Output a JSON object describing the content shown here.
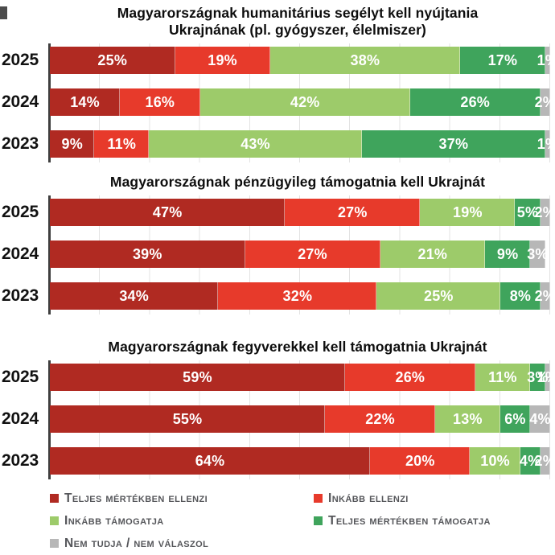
{
  "page": {
    "background": "#FFFFFF"
  },
  "colors": {
    "strongly_oppose": "#B02A22",
    "somewhat_oppose": "#E73A2B",
    "somewhat_support": "#9DCB6A",
    "strongly_support": "#3FA45C",
    "dont_know": "#B7B7B7",
    "axis": "#3E3E3E",
    "gridline": "#E3E3E3",
    "bar_label": "#FFFFFF",
    "title_text": "#0E0E0E",
    "year_text": "#111111",
    "legend_text": "#55565A"
  },
  "legend": {
    "items": [
      {
        "label": "Teljes mértékben ellenzi",
        "color": "#B02A22"
      },
      {
        "label": "Inkább ellenzi",
        "color": "#E73A2B"
      },
      {
        "label": "Inkább támogatja",
        "color": "#9DCB6A"
      },
      {
        "label": "Teljes mértékben támogatja",
        "color": "#3FA45C"
      },
      {
        "label": "Nem tudja / nem válaszol",
        "color": "#B7B7B7"
      }
    ]
  },
  "chart_data": [
    {
      "type": "bar",
      "orientation": "horizontal",
      "stacked": true,
      "grid": true,
      "unit": "%",
      "xlim": [
        0,
        100
      ],
      "title": "Magyarországnak humanitárius segélyt kell nyújtania\nUkrajnának (pl. gyógyszer, élelmiszer)",
      "categories": [
        "2025",
        "2024",
        "2023"
      ],
      "series": [
        {
          "name": "Teljes mértékben ellenzi",
          "values": [
            25,
            14,
            9
          ]
        },
        {
          "name": "Inkább ellenzi",
          "values": [
            19,
            16,
            11
          ]
        },
        {
          "name": "Inkább támogatja",
          "values": [
            38,
            42,
            43
          ]
        },
        {
          "name": "Teljes mértékben támogatja",
          "values": [
            17,
            26,
            37
          ]
        },
        {
          "name": "Nem tudja / nem válaszol",
          "values": [
            1,
            2,
            1
          ]
        }
      ]
    },
    {
      "type": "bar",
      "orientation": "horizontal",
      "stacked": true,
      "grid": true,
      "unit": "%",
      "xlim": [
        0,
        100
      ],
      "title": "Magyarországnak pénzügyileg támogatnia kell Ukrajnát",
      "categories": [
        "2025",
        "2024",
        "2023"
      ],
      "series": [
        {
          "name": "Teljes mértékben ellenzi",
          "values": [
            47,
            39,
            34
          ]
        },
        {
          "name": "Inkább ellenzi",
          "values": [
            27,
            27,
            32
          ]
        },
        {
          "name": "Inkább támogatja",
          "values": [
            19,
            21,
            25
          ]
        },
        {
          "name": "Teljes mértékben támogatja",
          "values": [
            5,
            9,
            8
          ]
        },
        {
          "name": "Nem tudja / nem válaszol",
          "values": [
            2,
            3,
            2
          ]
        }
      ]
    },
    {
      "type": "bar",
      "orientation": "horizontal",
      "stacked": true,
      "grid": true,
      "unit": "%",
      "xlim": [
        0,
        100
      ],
      "title": "Magyarországnak fegyverekkel kell támogatnia Ukrajnát",
      "categories": [
        "2025",
        "2024",
        "2023"
      ],
      "series": [
        {
          "name": "Teljes mértékben ellenzi",
          "values": [
            59,
            55,
            64
          ]
        },
        {
          "name": "Inkább ellenzi",
          "values": [
            26,
            22,
            20
          ]
        },
        {
          "name": "Inkább támogatja",
          "values": [
            11,
            13,
            10
          ]
        },
        {
          "name": "Teljes mértékben támogatja",
          "values": [
            3,
            6,
            4
          ]
        },
        {
          "name": "Nem tudja / nem válaszol",
          "values": [
            1,
            4,
            2
          ]
        }
      ]
    }
  ]
}
